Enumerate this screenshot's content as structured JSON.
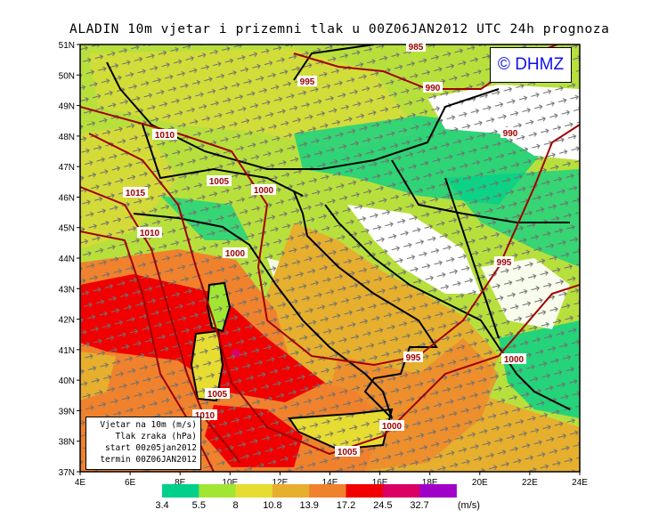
{
  "title": "ALADIN 10m vjetar i prizemni tlak u 00Z06JAN2012 UTC 24h prognoza",
  "copyright": "© DHMZ",
  "info_box": {
    "line1": "Vjetar na 10m (m/s)",
    "line2": "Tlak zraka (hPa)",
    "line3": "start 00z05jan2012",
    "line4": "termin 00Z06JAN2012"
  },
  "axes": {
    "lat_labels": [
      "37N",
      "38N",
      "39N",
      "40N",
      "41N",
      "42N",
      "43N",
      "44N",
      "45N",
      "46N",
      "47N",
      "48N",
      "49N",
      "50N",
      "51N"
    ],
    "lon_labels": [
      "4E",
      "6E",
      "8E",
      "10E",
      "12E",
      "14E",
      "16E",
      "18E",
      "20E",
      "22E",
      "24E"
    ]
  },
  "isobar_labels": [
    "985",
    "995",
    "990",
    "990",
    "1010",
    "1005",
    "1000",
    "1015",
    "1010",
    "1000",
    "995",
    "995",
    "1000",
    "1005",
    "1010",
    "1000",
    "1005"
  ],
  "legend": {
    "unit": "(m/s)",
    "thresholds": [
      "3.4",
      "5.5",
      "8",
      "10.8",
      "13.9",
      "17.2",
      "24.5",
      "32.7"
    ],
    "colors": [
      "#00d08a",
      "#a0e632",
      "#e6dc32",
      "#e6af2d",
      "#f0822d",
      "#f00000",
      "#dc0064",
      "#a000c8"
    ]
  }
}
